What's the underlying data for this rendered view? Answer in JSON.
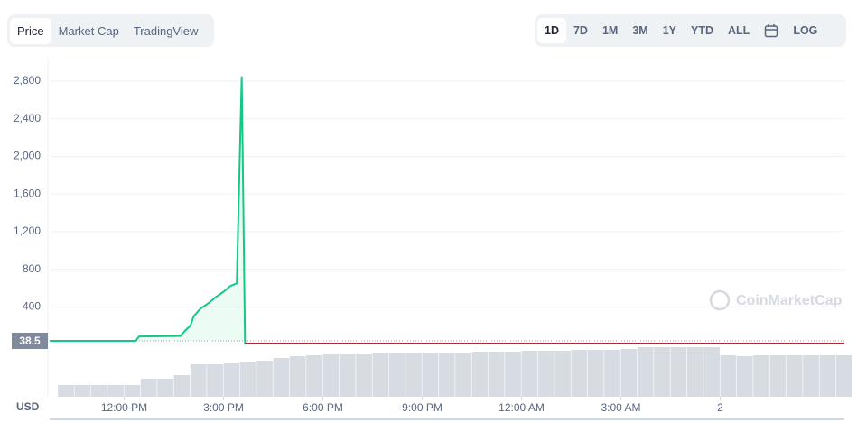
{
  "controls": {
    "tabs": [
      "Price",
      "Market Cap",
      "TradingView"
    ],
    "ranges": [
      "1D",
      "7D",
      "1M",
      "3M",
      "1Y",
      "YTD",
      "ALL"
    ],
    "log": "LOG"
  },
  "chart_data": {
    "type": "line",
    "currency": "USD",
    "watermark": "CoinMarketCap",
    "xlim": [
      9.75,
      33.75
    ],
    "xticks": [
      {
        "value": 12,
        "label": "12:00 PM"
      },
      {
        "value": 15,
        "label": "3:00 PM"
      },
      {
        "value": 18,
        "label": "6:00 PM"
      },
      {
        "value": 21,
        "label": "9:00 PM"
      },
      {
        "value": 24,
        "label": "12:00 AM"
      },
      {
        "value": 27,
        "label": "3:00 AM"
      },
      {
        "value": 30,
        "label": "2"
      }
    ],
    "ylim": [
      0,
      3040
    ],
    "yticks": [
      {
        "value": 400,
        "label": "400"
      },
      {
        "value": 800,
        "label": "800"
      },
      {
        "value": 1200,
        "label": "1,200"
      },
      {
        "value": 1600,
        "label": "1,600"
      },
      {
        "value": 2000,
        "label": "2,000"
      },
      {
        "value": 2400,
        "label": "2,400"
      },
      {
        "value": 2800,
        "label": "2,800"
      }
    ],
    "grid": true,
    "reference": 38.5,
    "series": [
      {
        "color": "#16c784",
        "x": [
          9.75,
          12.35,
          12.45,
          13.7,
          13.85,
          14.0,
          14.1,
          14.3,
          14.55,
          14.75,
          15.0,
          15.2,
          15.4,
          15.55,
          15.65
        ],
        "values": [
          38.5,
          38.5,
          85,
          90,
          150,
          200,
          300,
          380,
          440,
          500,
          560,
          620,
          650,
          2850,
          10
        ]
      },
      {
        "color": "#b22234",
        "x": [
          15.65,
          33.75
        ],
        "values": [
          10,
          10
        ]
      }
    ],
    "volume": {
      "color": "#d7dbe2",
      "width": 0.5,
      "vlim": [
        0,
        60
      ],
      "x": [
        10,
        10.5,
        11,
        11.5,
        12,
        12.5,
        13,
        13.5,
        14,
        14.5,
        15,
        15.5,
        16,
        16.5,
        17,
        17.5,
        18,
        18.5,
        19,
        19.5,
        20,
        20.5,
        21,
        21.5,
        22,
        22.5,
        23,
        23.5,
        24,
        24.5,
        25,
        25.5,
        26,
        26.5,
        27,
        27.5,
        28,
        28.5,
        29,
        29.5,
        30,
        30.5,
        31,
        31.5,
        32,
        32.5,
        33,
        33.5
      ],
      "values": [
        13,
        13,
        13,
        13,
        13,
        20,
        20,
        24,
        36,
        36,
        37,
        38,
        40,
        43,
        45,
        46,
        47,
        47,
        47,
        48,
        48,
        48,
        49,
        49,
        49,
        50,
        50,
        50,
        51,
        51,
        51,
        52,
        52,
        52,
        53,
        55,
        55,
        55,
        55,
        55,
        46,
        45,
        46,
        46,
        46,
        46,
        46,
        46
      ]
    }
  }
}
